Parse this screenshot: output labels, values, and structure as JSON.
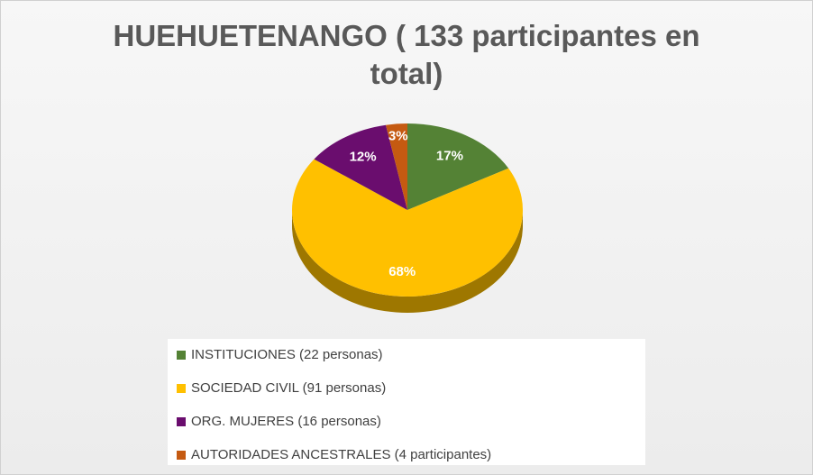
{
  "chart_data": {
    "type": "pie",
    "title": "HUEHUETENANGO  ( 133 participantes en total)",
    "categories": [
      "INSTITUCIONES (22 personas)",
      "SOCIEDAD CIVIL (91 personas)",
      "ORG. MUJERES (16 personas)",
      "AUTORIDADES ANCESTRALES (4 participantes)"
    ],
    "values": [
      17,
      68,
      12,
      3
    ],
    "value_labels": [
      "17%",
      "68%",
      "12%",
      "3%"
    ],
    "colors": [
      "#548235",
      "#ffc000",
      "#6a0d6e",
      "#c55a11"
    ],
    "legend": "bottom"
  }
}
